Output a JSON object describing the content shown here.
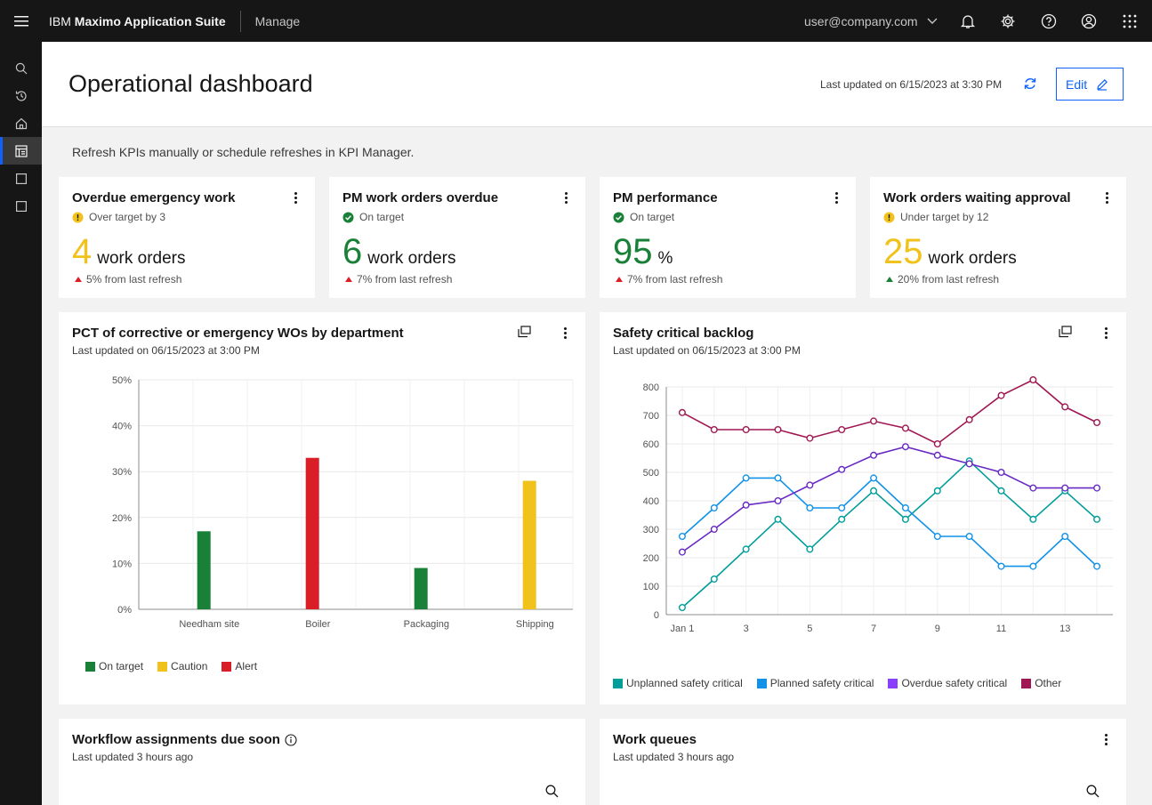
{
  "topbar": {
    "brand_prefix": "IBM",
    "brand_name": "Maximo Application Suite",
    "app_name": "Manage",
    "user": "user@company.com"
  },
  "header": {
    "title": "Operational dashboard",
    "last_updated": "Last updated on 6/15/2023 at 3:30 PM",
    "edit_label": "Edit"
  },
  "hint": "Refresh KPIs manually or schedule refreshes in KPI Manager.",
  "kpis": [
    {
      "title": "Overdue emergency work",
      "status": "Over target by 3",
      "status_type": "warning",
      "value": "4",
      "unit": "work orders",
      "delta": "5% from last refresh",
      "delta_dir": "up",
      "color": "#f1c21b"
    },
    {
      "title": "PM work orders overdue",
      "status": "On target",
      "status_type": "success",
      "value": "6",
      "unit": "work orders",
      "delta": "7% from last refresh",
      "delta_dir": "up",
      "color": "#198038"
    },
    {
      "title": "PM performance",
      "status": "On target",
      "status_type": "success",
      "value": "95",
      "unit": "%",
      "delta": "7% from last refresh",
      "delta_dir": "up",
      "color": "#198038"
    },
    {
      "title": "Work orders waiting approval",
      "status": "Under target by 12",
      "status_type": "warning",
      "value": "25",
      "unit": "work orders",
      "delta": "20% from last refresh",
      "delta_dir": "up-green",
      "color": "#f1c21b"
    }
  ],
  "bar_panel": {
    "title": "PCT of corrective or emergency WOs by department",
    "updated": "Last updated on 06/15/2023 at 3:00 PM"
  },
  "line_panel": {
    "title": "Safety critical backlog",
    "updated": "Last updated on 06/15/2023 at 3:00 PM"
  },
  "workflow_panel": {
    "title": "Workflow assignments due soon",
    "updated": "Last updated 3 hours ago"
  },
  "queues_panel": {
    "title": "Work queues",
    "updated": "Last updated 3 hours ago"
  },
  "colors": {
    "on_target": "#198038",
    "caution": "#f1c21b",
    "alert": "#da1e28",
    "accent": "#0f62fe"
  },
  "chart_data": [
    {
      "type": "bar",
      "categories": [
        "Needham site",
        "Boiler",
        "Packaging",
        "Shipping"
      ],
      "values": [
        17,
        33,
        9,
        28
      ],
      "bar_status": [
        "On target",
        "Alert",
        "On target",
        "Caution"
      ],
      "ylim": [
        0,
        50
      ],
      "yticks": [
        "0%",
        "10%",
        "20%",
        "30%",
        "40%",
        "50%"
      ],
      "legend": [
        "On target",
        "Caution",
        "Alert"
      ],
      "legend_colors": [
        "#198038",
        "#f1c21b",
        "#da1e28"
      ],
      "legend_position": "bottom-left"
    },
    {
      "type": "line",
      "x": [
        1,
        2,
        3,
        4,
        5,
        6,
        7,
        8,
        9,
        10,
        11,
        12,
        13,
        14
      ],
      "xticks": [
        "Jan 1",
        "3",
        "5",
        "7",
        "9",
        "11",
        "13"
      ],
      "xtick_values": [
        1,
        3,
        5,
        7,
        9,
        11,
        13
      ],
      "ylim": [
        0,
        800
      ],
      "yticks": [
        0,
        100,
        200,
        300,
        400,
        500,
        600,
        700,
        800
      ],
      "legend_position": "bottom-left",
      "series": [
        {
          "name": "Unplanned safety critical",
          "color": "#009d9a",
          "values": [
            25,
            125,
            230,
            335,
            230,
            335,
            435,
            335,
            435,
            540,
            435,
            335,
            435,
            335
          ]
        },
        {
          "name": "Planned safety critical",
          "color": "#1192e8",
          "values": [
            275,
            375,
            480,
            480,
            375,
            375,
            480,
            375,
            275,
            275,
            170,
            170,
            275,
            170
          ]
        },
        {
          "name": "Overdue safety critical",
          "color": "#6929c4",
          "values": [
            220,
            300,
            385,
            400,
            455,
            510,
            560,
            590,
            560,
            530,
            500,
            445,
            445,
            445
          ]
        },
        {
          "name": "Other",
          "color": "#9f1853",
          "values": [
            710,
            650,
            650,
            650,
            620,
            650,
            680,
            655,
            600,
            685,
            770,
            825,
            730,
            675
          ]
        }
      ]
    }
  ]
}
